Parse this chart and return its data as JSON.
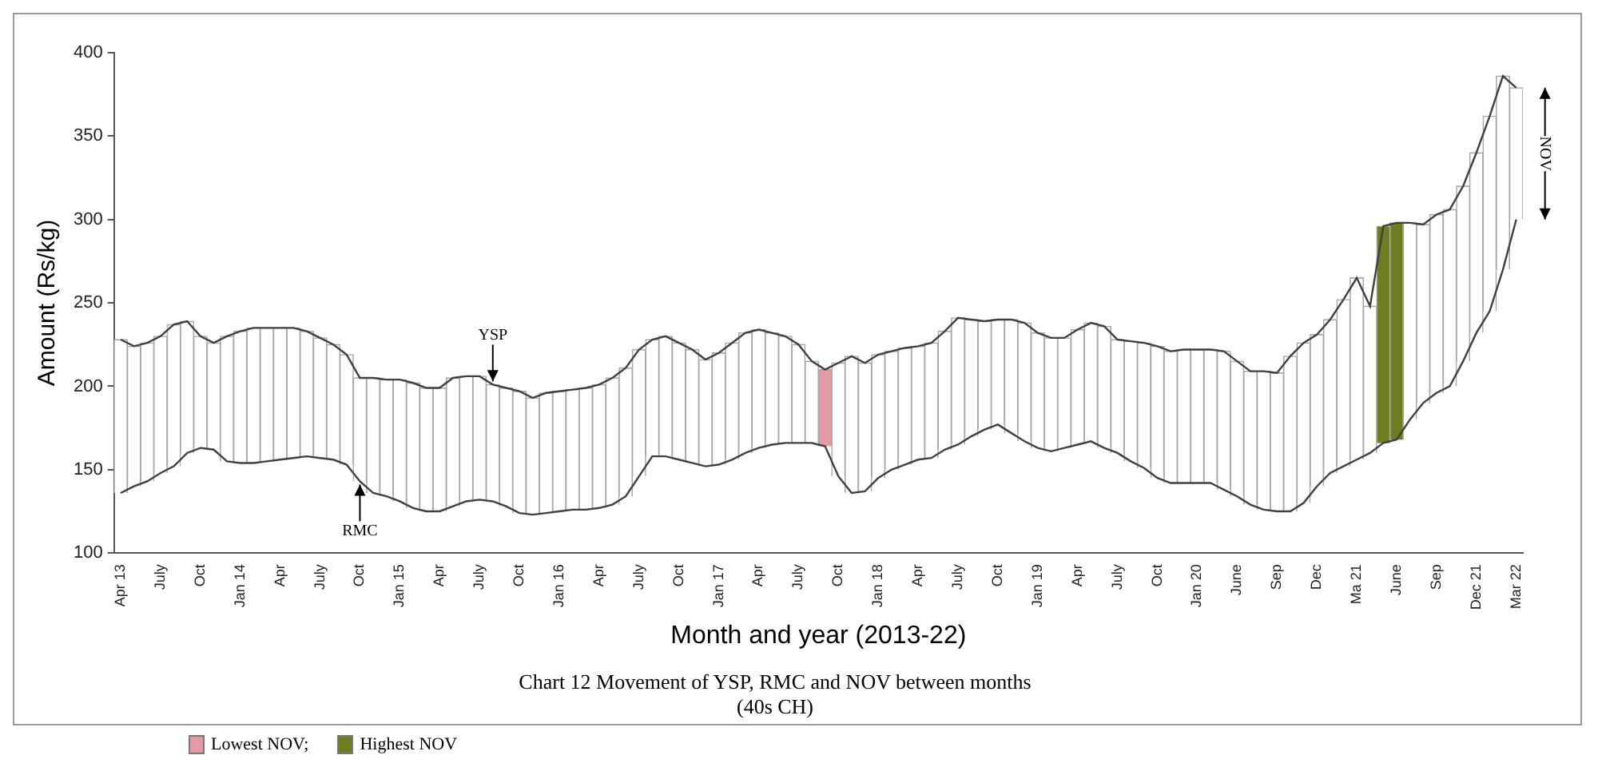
{
  "chart_data": {
    "type": "bar",
    "title": "Chart 12 Movement of YSP, RMC and NOV between months\n(40s CH)",
    "xlabel": "Month and year (2013-22)",
    "ylabel": "Amount (Rs/kg)",
    "categories": [
      "Apr 13",
      null,
      null,
      "July",
      null,
      null,
      "Oct",
      null,
      null,
      "Jan 14",
      null,
      null,
      "Apr",
      null,
      null,
      "July",
      null,
      null,
      "Oct",
      null,
      null,
      "Jan 15",
      null,
      null,
      "Apr",
      null,
      null,
      "July",
      null,
      null,
      "Oct",
      null,
      null,
      "Jan 16",
      null,
      null,
      "Apr",
      null,
      null,
      "July",
      null,
      null,
      "Oct",
      null,
      null,
      "Jan 17",
      null,
      null,
      "Apr",
      null,
      null,
      "July",
      null,
      null,
      "Oct",
      null,
      null,
      "Jan 18",
      null,
      null,
      "Apr",
      null,
      null,
      "July",
      null,
      null,
      "Oct",
      null,
      null,
      "Jan 19",
      null,
      null,
      "Apr",
      null,
      null,
      "July",
      null,
      null,
      "Oct",
      null,
      null,
      "Jan 20",
      null,
      null,
      "June",
      null,
      null,
      "Sep",
      null,
      null,
      "Dec",
      null,
      null,
      "Ma 21",
      null,
      null,
      "June",
      null,
      null,
      "Sep",
      null,
      null,
      "Dec 21",
      null,
      null,
      "Mar 22"
    ],
    "series": [
      {
        "color": "#ffffff",
        "values": [
          92,
          84,
          83,
          82,
          85,
          79,
          67,
          64,
          75,
          79,
          81,
          80,
          79,
          78,
          75,
          72,
          69,
          66,
          62,
          69,
          70,
          73,
          75,
          74,
          74,
          77,
          75,
          74,
          70,
          71,
          73,
          70,
          72,
          72,
          72,
          73,
          74,
          76,
          77,
          76,
          70,
          72,
          70,
          68,
          64,
          67,
          70,
          72,
          71,
          67,
          64,
          59,
          49,
          null,
          68,
          82,
          77,
          74,
          71,
          70,
          68,
          69,
          71,
          76,
          70,
          65,
          63,
          68,
          71,
          69,
          68,
          66,
          69,
          71,
          73,
          68,
          72,
          75,
          79,
          79,
          80,
          80,
          80,
          83,
          81,
          80,
          83,
          83,
          93,
          96,
          91,
          92,
          100,
          109,
          88,
          null,
          null,
          118,
          107,
          107,
          106,
          105,
          108,
          117,
          116,
          79
        ],
        "base": [
          136,
          140,
          143,
          148,
          152,
          160,
          163,
          162,
          155,
          154,
          154,
          155,
          156,
          157,
          158,
          157,
          156,
          153,
          143,
          136,
          134,
          131,
          127,
          125,
          125,
          128,
          131,
          132,
          131,
          128,
          124,
          123,
          124,
          125,
          126,
          126,
          127,
          129,
          134,
          146,
          158,
          158,
          156,
          154,
          152,
          153,
          156,
          160,
          163,
          165,
          166,
          166,
          166,
          null,
          146,
          136,
          137,
          145,
          150,
          153,
          156,
          157,
          162,
          165,
          170,
          174,
          177,
          172,
          167,
          163,
          161,
          163,
          165,
          167,
          163,
          160,
          155,
          151,
          145,
          142,
          142,
          142,
          142,
          138,
          134,
          129,
          126,
          125,
          125,
          130,
          140,
          148,
          152,
          156,
          160,
          null,
          null,
          180,
          190,
          196,
          200,
          215,
          232,
          245,
          270,
          300
        ]
      },
      {
        "name": "Lowest NOV;",
        "color": "#e49aa2",
        "values": [
          null,
          null,
          null,
          null,
          null,
          null,
          null,
          null,
          null,
          null,
          null,
          null,
          null,
          null,
          null,
          null,
          null,
          null,
          null,
          null,
          null,
          null,
          null,
          null,
          null,
          null,
          null,
          null,
          null,
          null,
          null,
          null,
          null,
          null,
          null,
          null,
          null,
          null,
          null,
          null,
          null,
          null,
          null,
          null,
          null,
          null,
          null,
          null,
          null,
          null,
          null,
          null,
          null,
          46,
          null,
          null,
          null,
          null,
          null,
          null,
          null,
          null,
          null,
          null,
          null,
          null,
          null,
          null,
          null,
          null,
          null,
          null,
          null,
          null,
          null,
          null,
          null,
          null,
          null,
          null,
          null,
          null,
          null,
          null,
          null,
          null,
          null,
          null,
          null,
          null,
          null,
          null,
          null,
          null,
          null,
          null,
          null,
          null,
          null,
          null,
          null,
          null,
          null,
          null,
          null,
          null
        ],
        "base": [
          null,
          null,
          null,
          null,
          null,
          null,
          null,
          null,
          null,
          null,
          null,
          null,
          null,
          null,
          null,
          null,
          null,
          null,
          null,
          null,
          null,
          null,
          null,
          null,
          null,
          null,
          null,
          null,
          null,
          null,
          null,
          null,
          null,
          null,
          null,
          null,
          null,
          null,
          null,
          null,
          null,
          null,
          null,
          null,
          null,
          null,
          null,
          null,
          null,
          null,
          null,
          null,
          null,
          164,
          null,
          null,
          null,
          null,
          null,
          null,
          null,
          null,
          null,
          null,
          null,
          null,
          null,
          null,
          null,
          null,
          null,
          null,
          null,
          null,
          null,
          null,
          null,
          null,
          null,
          null,
          null,
          null,
          null,
          null,
          null,
          null,
          null,
          null,
          null,
          null,
          null,
          null,
          null,
          null,
          null,
          null,
          null,
          null,
          null,
          null,
          null,
          null,
          null,
          null,
          null,
          null
        ]
      },
      {
        "name": "Highest NOV",
        "color": "#6e7d1f",
        "values": [
          null,
          null,
          null,
          null,
          null,
          null,
          null,
          null,
          null,
          null,
          null,
          null,
          null,
          null,
          null,
          null,
          null,
          null,
          null,
          null,
          null,
          null,
          null,
          null,
          null,
          null,
          null,
          null,
          null,
          null,
          null,
          null,
          null,
          null,
          null,
          null,
          null,
          null,
          null,
          null,
          null,
          null,
          null,
          null,
          null,
          null,
          null,
          null,
          null,
          null,
          null,
          null,
          null,
          null,
          null,
          null,
          null,
          null,
          null,
          null,
          null,
          null,
          null,
          null,
          null,
          null,
          null,
          null,
          null,
          null,
          null,
          null,
          null,
          null,
          null,
          null,
          null,
          null,
          null,
          null,
          null,
          null,
          null,
          null,
          null,
          null,
          null,
          null,
          null,
          null,
          null,
          null,
          null,
          null,
          null,
          130,
          130,
          null,
          null,
          null,
          null,
          null,
          null,
          null,
          null,
          null
        ],
        "base": [
          null,
          null,
          null,
          null,
          null,
          null,
          null,
          null,
          null,
          null,
          null,
          null,
          null,
          null,
          null,
          null,
          null,
          null,
          null,
          null,
          null,
          null,
          null,
          null,
          null,
          null,
          null,
          null,
          null,
          null,
          null,
          null,
          null,
          null,
          null,
          null,
          null,
          null,
          null,
          null,
          null,
          null,
          null,
          null,
          null,
          null,
          null,
          null,
          null,
          null,
          null,
          null,
          null,
          null,
          null,
          null,
          null,
          null,
          null,
          null,
          null,
          null,
          null,
          null,
          null,
          null,
          null,
          null,
          null,
          null,
          null,
          null,
          null,
          null,
          null,
          null,
          null,
          null,
          null,
          null,
          null,
          null,
          null,
          null,
          null,
          null,
          null,
          null,
          null,
          null,
          null,
          null,
          null,
          null,
          null,
          166,
          168,
          null,
          null,
          null,
          null,
          null,
          null,
          null,
          null,
          null
        ]
      },
      {
        "type": "line",
        "color": "#404040",
        "values": [
          228,
          224,
          226,
          230,
          237,
          239,
          230,
          226,
          230,
          233,
          235,
          235,
          235,
          235,
          233,
          229,
          225,
          219,
          205,
          205,
          204,
          204,
          202,
          199,
          199,
          205,
          206,
          206,
          201,
          199,
          197,
          193,
          196,
          197,
          198,
          199,
          201,
          205,
          211,
          222,
          228,
          230,
          226,
          222,
          216,
          220,
          226,
          232,
          234,
          232,
          230,
          225,
          215,
          210,
          214,
          218,
          214,
          219,
          221,
          223,
          224,
          226,
          233,
          241,
          240,
          239,
          240,
          240,
          238,
          232,
          229,
          229,
          234,
          238,
          236,
          228,
          227,
          226,
          224,
          221,
          222,
          222,
          222,
          221,
          215,
          209,
          209,
          208,
          218,
          226,
          231,
          240,
          252,
          265,
          248,
          296,
          298,
          298,
          297,
          303,
          306,
          320,
          340,
          362,
          386,
          379
        ]
      },
      {
        "type": "line",
        "color": "#404040",
        "values": [
          136,
          140,
          143,
          148,
          152,
          160,
          163,
          162,
          155,
          154,
          154,
          155,
          156,
          157,
          158,
          157,
          156,
          153,
          143,
          136,
          134,
          131,
          127,
          125,
          125,
          128,
          131,
          132,
          131,
          128,
          124,
          123,
          124,
          125,
          126,
          126,
          127,
          129,
          134,
          146,
          158,
          158,
          156,
          154,
          152,
          153,
          156,
          160,
          163,
          165,
          166,
          166,
          166,
          164,
          146,
          136,
          137,
          145,
          150,
          153,
          156,
          157,
          162,
          165,
          170,
          174,
          177,
          172,
          167,
          163,
          161,
          163,
          165,
          167,
          163,
          160,
          155,
          151,
          145,
          142,
          142,
          142,
          142,
          138,
          134,
          129,
          126,
          125,
          125,
          130,
          140,
          148,
          152,
          156,
          160,
          166,
          168,
          180,
          190,
          196,
          200,
          215,
          232,
          245,
          270,
          300
        ]
      }
    ],
    "ylim": [
      100,
      400
    ],
    "yticks": [
      100,
      150,
      200,
      250,
      300,
      350,
      400
    ],
    "annotations": [
      {
        "text": "YSP",
        "y": 201
      },
      {
        "text": "RMC",
        "y": 143
      },
      "NOV"
    ],
    "legend": "bottom left"
  }
}
